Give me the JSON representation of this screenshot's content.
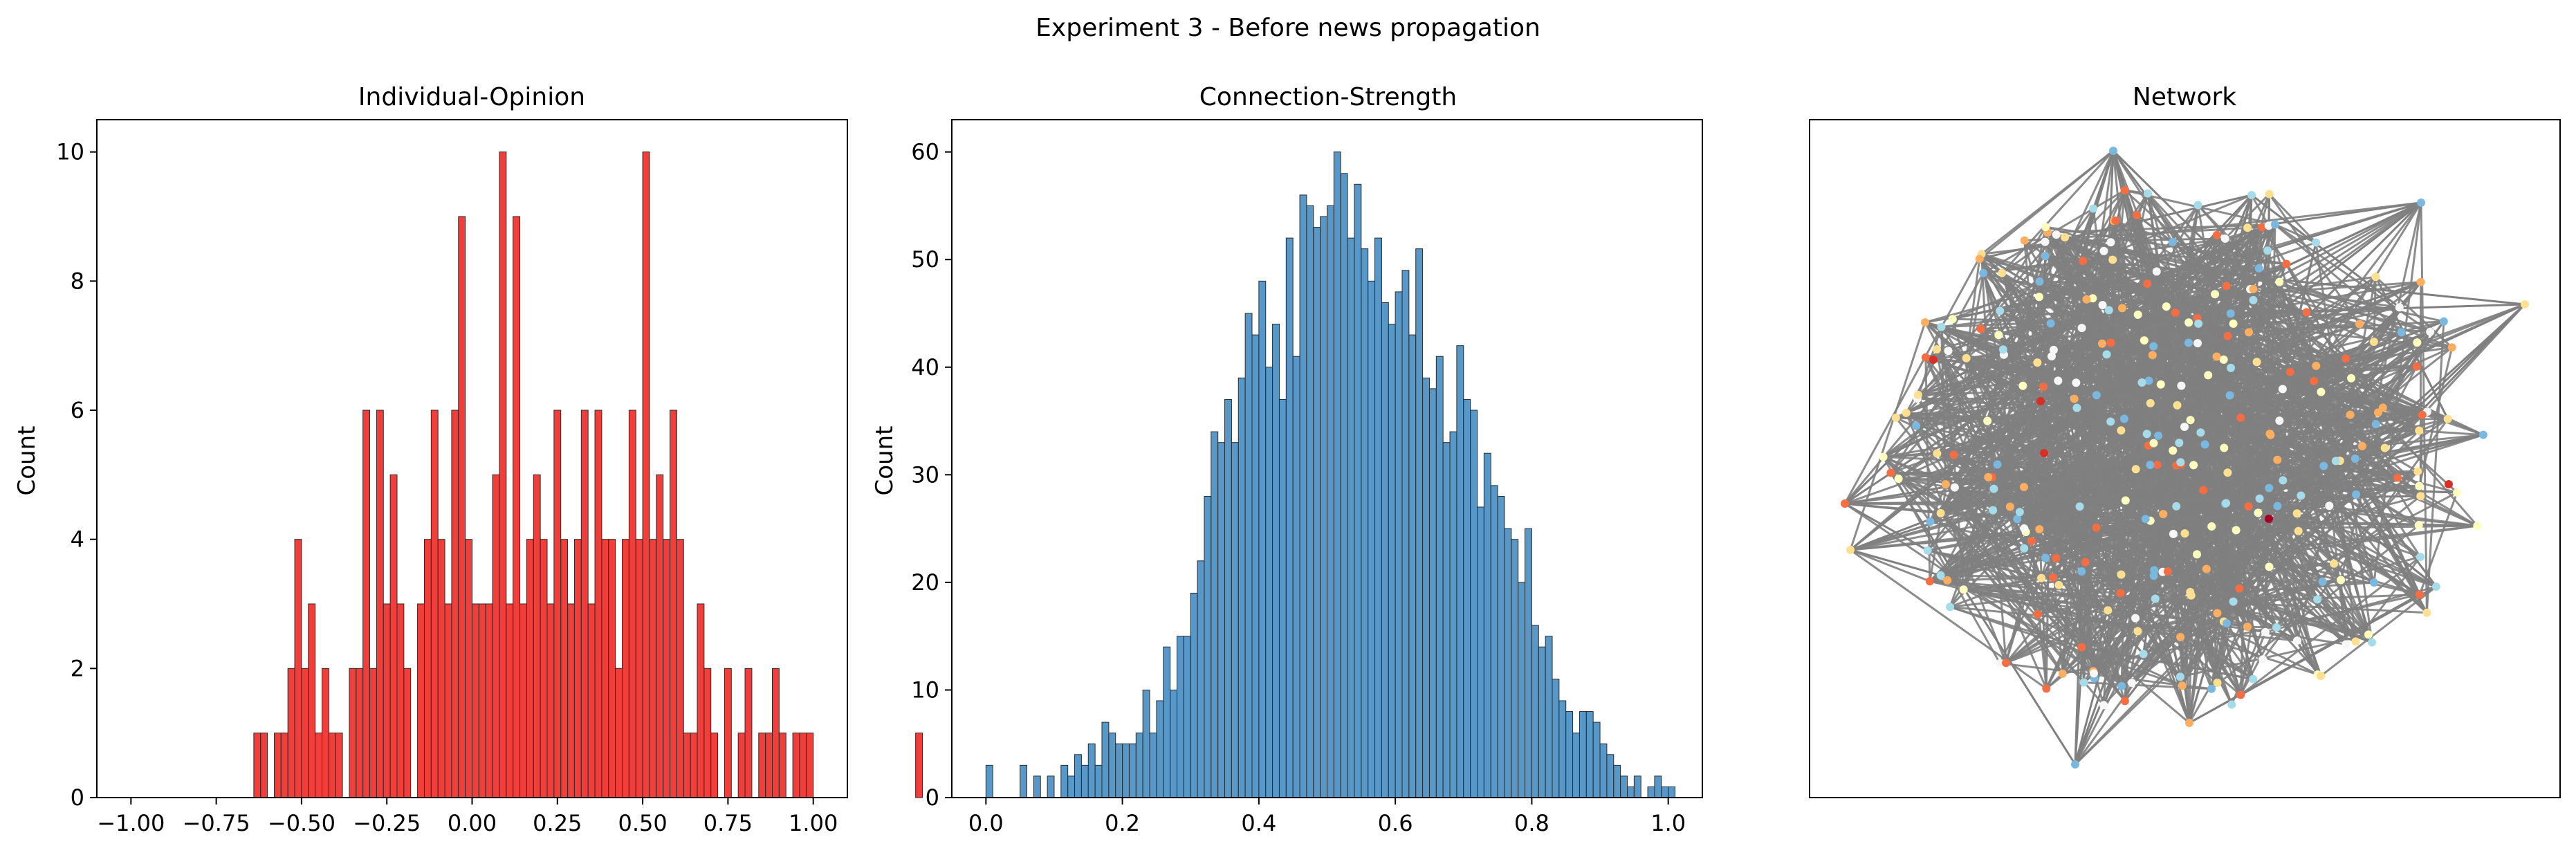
{
  "figure": {
    "suptitle": "Experiment 3 - Before news propagation"
  },
  "chart_data": [
    {
      "type": "bar",
      "title": "Individual-Opinion",
      "xlabel": "",
      "ylabel": "Count",
      "bar_color": "#ee1c17",
      "xlim": [
        -1.1,
        1.1
      ],
      "ylim": [
        0,
        10.5
      ],
      "xticks": [
        -1.0,
        -0.75,
        -0.5,
        -0.25,
        0.0,
        0.25,
        0.5,
        0.75,
        1.0
      ],
      "xtick_labels": [
        "−1.00",
        "−0.75",
        "−0.50",
        "−0.25",
        "0.00",
        "0.25",
        "0.50",
        "0.75",
        "1.00"
      ],
      "yticks": [
        0,
        2,
        4,
        6,
        8,
        10
      ],
      "ytick_labels": [
        "0",
        "2",
        "4",
        "6",
        "8",
        "10"
      ],
      "bin_start": -0.64,
      "bin_width": 0.02,
      "values": [
        1,
        1,
        0,
        1,
        1,
        2,
        4,
        2,
        3,
        1,
        2,
        1,
        1,
        0,
        2,
        2,
        6,
        2,
        6,
        3,
        5,
        3,
        2,
        0,
        3,
        4,
        6,
        4,
        3,
        6,
        9,
        4,
        3,
        3,
        3,
        5,
        10,
        3,
        9,
        3,
        4,
        5,
        4,
        3,
        6,
        4,
        3,
        4,
        6,
        3,
        6,
        4,
        4,
        2,
        4,
        6,
        4,
        10,
        4,
        5,
        4,
        6,
        4,
        1,
        1,
        3,
        2,
        1,
        0,
        2,
        0,
        1,
        2,
        0,
        1,
        1,
        2,
        1,
        0,
        1,
        1,
        1,
        0,
        0,
        0,
        0,
        0,
        0,
        0,
        0,
        0,
        0,
        0,
        0,
        0,
        0,
        0,
        1
      ]
    },
    {
      "type": "bar",
      "title": "Connection-Strength",
      "xlabel": "",
      "ylabel": "Count",
      "bar_color": "#3a86c0",
      "xlim": [
        -0.05,
        1.05
      ],
      "ylim": [
        0,
        63
      ],
      "xticks": [
        0.0,
        0.2,
        0.4,
        0.6,
        0.8,
        1.0
      ],
      "xtick_labels": [
        "0.0",
        "0.2",
        "0.4",
        "0.6",
        "0.8",
        "1.0"
      ],
      "yticks": [
        0,
        10,
        20,
        30,
        40,
        50,
        60
      ],
      "ytick_labels": [
        "0",
        "10",
        "20",
        "30",
        "40",
        "50",
        "60"
      ],
      "bin_start": 0.0,
      "bin_width": 0.01,
      "values": [
        3,
        0,
        0,
        0,
        0,
        3,
        0,
        2,
        0,
        2,
        0,
        3,
        2,
        4,
        3,
        5,
        3,
        7,
        6,
        5,
        5,
        5,
        6,
        10,
        6,
        9,
        14,
        10,
        15,
        15,
        19,
        22,
        28,
        34,
        33,
        37,
        33,
        39,
        45,
        43,
        48,
        40,
        44,
        37,
        52,
        41,
        56,
        55,
        53,
        54,
        55,
        60,
        58,
        52,
        57,
        51,
        48,
        52,
        46,
        44,
        47,
        49,
        43,
        51,
        39,
        38,
        41,
        33,
        34,
        42,
        37,
        36,
        27,
        32,
        29,
        28,
        25,
        24,
        20,
        25,
        16,
        14,
        15,
        11,
        9,
        8,
        6,
        8,
        8,
        7,
        5,
        4,
        3,
        2,
        1,
        2,
        0,
        1,
        2,
        1,
        1
      ]
    },
    {
      "type": "scatter",
      "title": "Network",
      "xlabel": "",
      "ylabel": "",
      "axes_visible": false,
      "edge_color": "#808080",
      "node_colormap": [
        "#f7f7f7",
        "#a6dbea",
        "#7ab8df",
        "#ffffbf",
        "#fee090",
        "#fdae61",
        "#f46d43",
        "#d73027",
        "#a50026"
      ]
    }
  ]
}
